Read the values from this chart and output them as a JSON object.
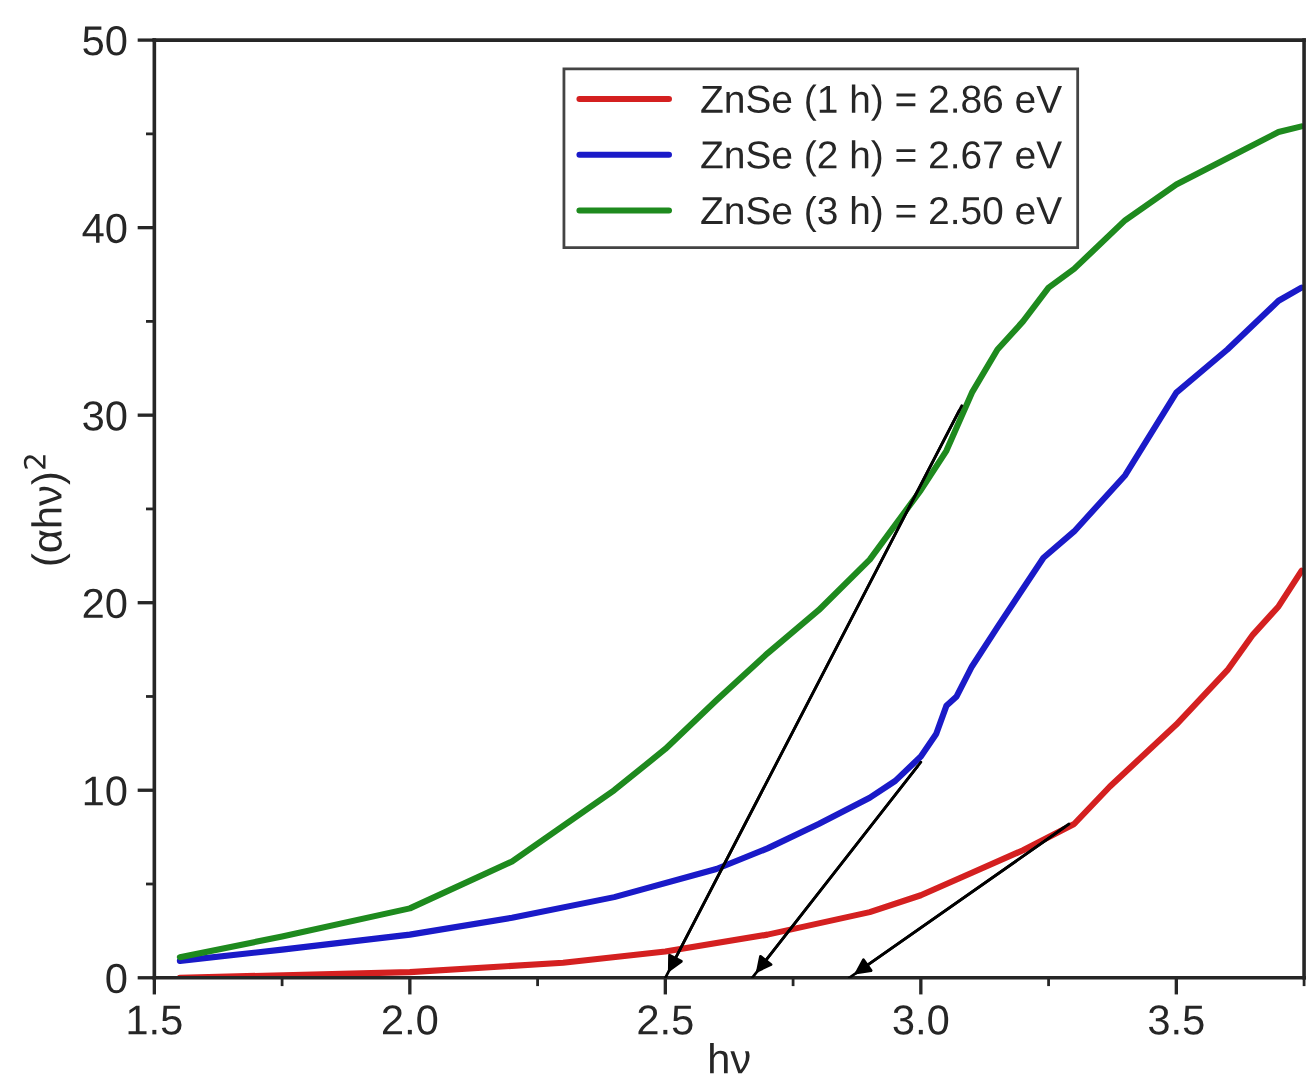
{
  "chart_data": {
    "type": "line",
    "xlabel": "hν",
    "ylabel": "(αhν)$^{2}$",
    "xlim": [
      1.5,
      3.75
    ],
    "ylim": [
      0,
      50
    ],
    "xticks": [
      {
        "value": 1.5,
        "label": "1.5"
      },
      {
        "value": 2.0,
        "label": "2.0"
      },
      {
        "value": 2.5,
        "label": "2.5"
      },
      {
        "value": 3.0,
        "label": "3.0"
      },
      {
        "value": 3.5,
        "label": "3.5"
      }
    ],
    "yticks": [
      0,
      10,
      20,
      30,
      40,
      50
    ],
    "grid": false,
    "legend": "top right",
    "line_style": "solid",
    "marker": "none",
    "series": [
      {
        "name": "ZnSe (1 h) = 2.86 eV",
        "color": "#d42020",
        "x": [
          1.55,
          2.0,
          2.3,
          2.5,
          2.7,
          2.9,
          3.0,
          3.1,
          3.2,
          3.3,
          3.37,
          3.5,
          3.6,
          3.65,
          3.7,
          3.745
        ],
        "values": [
          0,
          0.3,
          0.8,
          1.4,
          2.3,
          3.5,
          4.4,
          5.6,
          6.8,
          8.2,
          10.2,
          13.5,
          16.4,
          18.3,
          19.8,
          21.7
        ]
      },
      {
        "name": "ZnSe (2 h) = 2.67 eV",
        "color": "#1a1ac8",
        "x": [
          1.55,
          1.75,
          2.0,
          2.2,
          2.4,
          2.6,
          2.7,
          2.8,
          2.9,
          2.95,
          3.0,
          3.03,
          3.05,
          3.07,
          3.1,
          3.15,
          3.24,
          3.3,
          3.4,
          3.5,
          3.6,
          3.7,
          3.745
        ],
        "values": [
          0.9,
          1.5,
          2.3,
          3.2,
          4.3,
          5.8,
          6.9,
          8.2,
          9.6,
          10.5,
          11.8,
          13.0,
          14.5,
          15.0,
          16.6,
          18.7,
          22.4,
          23.8,
          26.8,
          31.2,
          33.5,
          36.1,
          36.8
        ]
      },
      {
        "name": "ZnSe (3 h) = 2.50 eV",
        "color": "#1e8a1e",
        "x": [
          1.55,
          1.75,
          2.0,
          2.2,
          2.4,
          2.5,
          2.6,
          2.7,
          2.8,
          2.9,
          3.0,
          3.05,
          3.1,
          3.15,
          3.2,
          3.25,
          3.3,
          3.4,
          3.5,
          3.6,
          3.7,
          3.745
        ],
        "values": [
          1.1,
          2.2,
          3.7,
          6.2,
          10.0,
          12.2,
          14.8,
          17.3,
          19.6,
          22.3,
          26.0,
          28.1,
          31.2,
          33.5,
          35.0,
          36.8,
          37.8,
          40.4,
          42.3,
          43.7,
          45.1,
          45.4
        ]
      },
      {
        "type": "line",
        "color": "#000000",
        "x": [
          3.29,
          2.86
        ],
        "values": [
          8.2,
          0
        ]
      },
      {
        "type": "line",
        "color": "#000000",
        "x": [
          3.0,
          2.67
        ],
        "values": [
          11.5,
          0
        ]
      },
      {
        "type": "line",
        "color": "#000000",
        "x": [
          3.08,
          2.5
        ],
        "values": [
          30.5,
          0
        ]
      }
    ]
  }
}
